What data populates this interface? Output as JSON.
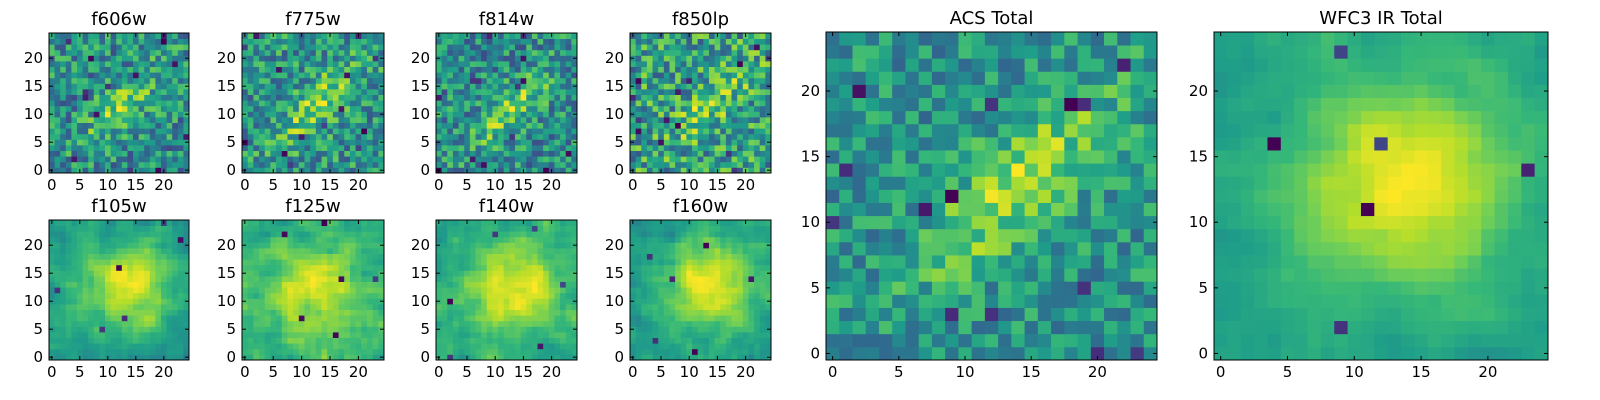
{
  "figure": {
    "colormap": "viridis",
    "colors": {
      "low": "#440154",
      "mid": "#21918c",
      "high": "#fde725"
    }
  },
  "chart_data": [
    {
      "type": "heatmap",
      "title": "f606w",
      "grid_size": 25,
      "xlim": [
        0,
        24
      ],
      "ylim": [
        0,
        24
      ],
      "xticks": [
        0,
        5,
        10,
        15,
        20
      ],
      "yticks": [
        0,
        5,
        10,
        15,
        20
      ],
      "pattern": "diagonal",
      "source": {
        "x": 13,
        "y": 12,
        "amplitude": 0.35
      },
      "noise": 0.3,
      "seed": 11
    },
    {
      "type": "heatmap",
      "title": "f775w",
      "grid_size": 25,
      "xlim": [
        0,
        24
      ],
      "ylim": [
        0,
        24
      ],
      "xticks": [
        0,
        5,
        10,
        15,
        20
      ],
      "yticks": [
        0,
        5,
        10,
        15,
        20
      ],
      "pattern": "diagonal",
      "source": {
        "x": 13,
        "y": 12,
        "amplitude": 0.38
      },
      "noise": 0.3,
      "seed": 23
    },
    {
      "type": "heatmap",
      "title": "f814w",
      "grid_size": 25,
      "xlim": [
        0,
        24
      ],
      "ylim": [
        0,
        24
      ],
      "xticks": [
        0,
        5,
        10,
        15,
        20
      ],
      "yticks": [
        0,
        5,
        10,
        15,
        20
      ],
      "pattern": "diagonal",
      "source": {
        "x": 13,
        "y": 11,
        "amplitude": 0.38
      },
      "noise": 0.32,
      "seed": 37
    },
    {
      "type": "heatmap",
      "title": "f850lp",
      "grid_size": 25,
      "xlim": [
        0,
        24
      ],
      "ylim": [
        0,
        24
      ],
      "xticks": [
        0,
        5,
        10,
        15,
        20
      ],
      "yticks": [
        0,
        5,
        10,
        15,
        20
      ],
      "pattern": "diagonal",
      "source": {
        "x": 14,
        "y": 12,
        "amplitude": 0.25
      },
      "noise": 0.32,
      "seed": 41
    },
    {
      "type": "heatmap",
      "title": "f105w",
      "grid_size": 25,
      "xlim": [
        0,
        24
      ],
      "ylim": [
        0,
        24
      ],
      "xticks": [
        0,
        5,
        10,
        15,
        20
      ],
      "yticks": [
        0,
        5,
        10,
        15,
        20
      ],
      "pattern": "blob",
      "source": {
        "x": 14,
        "y": 13,
        "amplitude": 0.4
      },
      "noise": 0.22,
      "smooth": true,
      "seed": 53
    },
    {
      "type": "heatmap",
      "title": "f125w",
      "grid_size": 25,
      "xlim": [
        0,
        24
      ],
      "ylim": [
        0,
        24
      ],
      "xticks": [
        0,
        5,
        10,
        15,
        20
      ],
      "yticks": [
        0,
        5,
        10,
        15,
        20
      ],
      "pattern": "blob",
      "source": {
        "x": 12,
        "y": 12,
        "amplitude": 0.3
      },
      "noise": 0.25,
      "smooth": true,
      "seed": 61
    },
    {
      "type": "heatmap",
      "title": "f140w",
      "grid_size": 25,
      "xlim": [
        0,
        24
      ],
      "ylim": [
        0,
        24
      ],
      "xticks": [
        0,
        5,
        10,
        15,
        20
      ],
      "yticks": [
        0,
        5,
        10,
        15,
        20
      ],
      "pattern": "blob",
      "source": {
        "x": 13,
        "y": 12,
        "amplitude": 0.38
      },
      "noise": 0.22,
      "smooth": true,
      "seed": 73
    },
    {
      "type": "heatmap",
      "title": "f160w",
      "grid_size": 25,
      "xlim": [
        0,
        24
      ],
      "ylim": [
        0,
        24
      ],
      "xticks": [
        0,
        5,
        10,
        15,
        20
      ],
      "yticks": [
        0,
        5,
        10,
        15,
        20
      ],
      "pattern": "blob",
      "source": {
        "x": 14,
        "y": 13,
        "amplitude": 0.42
      },
      "noise": 0.22,
      "smooth": true,
      "seed": 89
    },
    {
      "type": "heatmap",
      "title": "ACS Total",
      "grid_size": 25,
      "xlim": [
        0,
        24
      ],
      "ylim": [
        0,
        24
      ],
      "xticks": [
        0,
        5,
        10,
        15,
        20
      ],
      "yticks": [
        0,
        5,
        10,
        15,
        20
      ],
      "pattern": "diagonal",
      "source": {
        "x": 14,
        "y": 13,
        "amplitude": 0.4
      },
      "noise": 0.22,
      "seed": 97
    },
    {
      "type": "heatmap",
      "title": "WFC3 IR Total",
      "grid_size": 25,
      "xlim": [
        0,
        24
      ],
      "ylim": [
        0,
        24
      ],
      "xticks": [
        0,
        5,
        10,
        15,
        20
      ],
      "yticks": [
        0,
        5,
        10,
        15,
        20
      ],
      "pattern": "blob",
      "source": {
        "x": 14,
        "y": 13,
        "amplitude": 0.45
      },
      "noise": 0.14,
      "smooth": true,
      "seed": 101
    }
  ]
}
